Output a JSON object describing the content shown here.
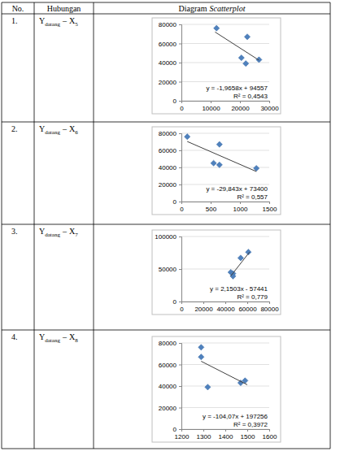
{
  "table": {
    "headers": [
      "No.",
      "Hubungan",
      [
        "Diagram",
        "Scatterplot"
      ]
    ],
    "rows": [
      {
        "no": "1.",
        "relation": [
          "Y",
          "datang",
          "–",
          "X",
          "5"
        ]
      },
      {
        "no": "2.",
        "relation": [
          "Y",
          "datang",
          "–",
          "X",
          "6"
        ]
      },
      {
        "no": "3.",
        "relation": [
          "Y",
          "datang",
          "–",
          "X",
          "7"
        ]
      },
      {
        "no": "4.",
        "relation": [
          "Y",
          "datang",
          "–",
          "X",
          "8"
        ]
      }
    ]
  },
  "chart_data": [
    {
      "type": "scatter",
      "grid": true,
      "xlim": [
        0,
        30000
      ],
      "xticks": [
        0,
        10000,
        20000,
        30000
      ],
      "ylim": [
        0,
        80000
      ],
      "yticks": [
        0,
        20000,
        40000,
        60000,
        80000
      ],
      "series": [
        {
          "type": "scatter",
          "marker": "diamond",
          "color": "#4f81bd",
          "x": [
            12000,
            20500,
            22000,
            22500,
            26500
          ],
          "values": [
            76000,
            45000,
            39000,
            67000,
            43000
          ]
        },
        {
          "type": "line",
          "line_style": "solid",
          "color": "#404040",
          "x": [
            11500,
            26500
          ],
          "values": [
            72000,
            42500
          ]
        }
      ],
      "annotations": [
        "y = -1,9658x + 94557",
        "R² = 0,4543"
      ]
    },
    {
      "type": "scatter",
      "grid": true,
      "xlim": [
        0,
        1500
      ],
      "xticks": [
        0,
        500,
        1000,
        1500
      ],
      "ylim": [
        0,
        80000
      ],
      "yticks": [
        0,
        20000,
        40000,
        60000,
        80000
      ],
      "series": [
        {
          "type": "scatter",
          "marker": "diamond",
          "color": "#4f81bd",
          "x": [
            100,
            550,
            650,
            650,
            1280
          ],
          "values": [
            76000,
            45000,
            43000,
            67000,
            39000
          ]
        },
        {
          "type": "line",
          "line_style": "solid",
          "color": "#404040",
          "x": [
            100,
            1280
          ],
          "values": [
            70400,
            35200
          ]
        }
      ],
      "annotations": [
        "y = -29,843x + 73400",
        "R² = 0,557"
      ]
    },
    {
      "type": "scatter",
      "grid": true,
      "xlim": [
        0,
        80000
      ],
      "xticks": [
        0,
        20000,
        40000,
        60000,
        80000
      ],
      "ylim": [
        0,
        100000
      ],
      "yticks": [
        0,
        50000,
        100000
      ],
      "series": [
        {
          "type": "scatter",
          "marker": "diamond",
          "color": "#4f81bd",
          "x": [
            45000,
            47000,
            47000,
            54000,
            61000
          ],
          "values": [
            45000,
            43000,
            39000,
            67000,
            76000
          ]
        },
        {
          "type": "line",
          "line_style": "solid",
          "color": "#404040",
          "x": [
            45000,
            62000
          ],
          "values": [
            39300,
            75900
          ]
        }
      ],
      "annotations": [
        "y = 2,1503x - 57441",
        "R² = 0,779"
      ]
    },
    {
      "type": "scatter",
      "grid": true,
      "xlim": [
        1200,
        1600
      ],
      "xticks": [
        1200,
        1300,
        1400,
        1500,
        1600
      ],
      "ylim": [
        0,
        80000
      ],
      "yticks": [
        0,
        20000,
        40000,
        60000,
        80000
      ],
      "series": [
        {
          "type": "scatter",
          "marker": "diamond",
          "color": "#4f81bd",
          "x": [
            1290,
            1290,
            1320,
            1470,
            1490
          ],
          "values": [
            76000,
            67000,
            39000,
            43000,
            45000
          ]
        },
        {
          "type": "line",
          "line_style": "solid",
          "color": "#404040",
          "x": [
            1290,
            1500
          ],
          "values": [
            63000,
            41200
          ]
        }
      ],
      "annotations": [
        "y = -104,07x + 197256",
        "R² = 0,3972"
      ]
    }
  ]
}
